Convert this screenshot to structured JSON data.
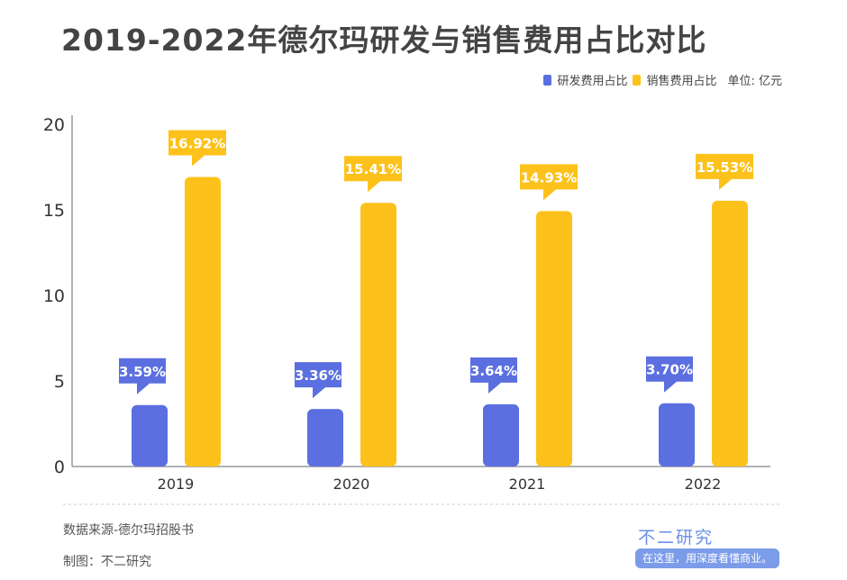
{
  "title": "2019-2022年德尔玛研发与销售费用占比对比",
  "unit": "单位: 亿元",
  "source": "数据来源-德尔玛招股书",
  "maker": "制图：不二研究",
  "brand": "不二研究",
  "slogan": "在这里，用深度看懂商业。",
  "chart_data": {
    "type": "bar",
    "categories": [
      "2019",
      "2020",
      "2021",
      "2022"
    ],
    "series": [
      {
        "name": "研发费用占比",
        "values": [
          3.59,
          3.36,
          3.64,
          3.7
        ],
        "labels": [
          "3.59%",
          "3.36%",
          "3.64%",
          "3.70%"
        ],
        "color": "#5b6fe0"
      },
      {
        "name": "销售费用占比",
        "values": [
          16.92,
          15.41,
          14.93,
          15.53
        ],
        "labels": [
          "16.92%",
          "15.41%",
          "14.93%",
          "15.53%"
        ],
        "color": "#fcc21b"
      }
    ],
    "yticks": [
      "0",
      "5",
      "10",
      "15",
      "20"
    ],
    "ylim": [
      0,
      20
    ],
    "grid": false,
    "legend": "top-right"
  }
}
